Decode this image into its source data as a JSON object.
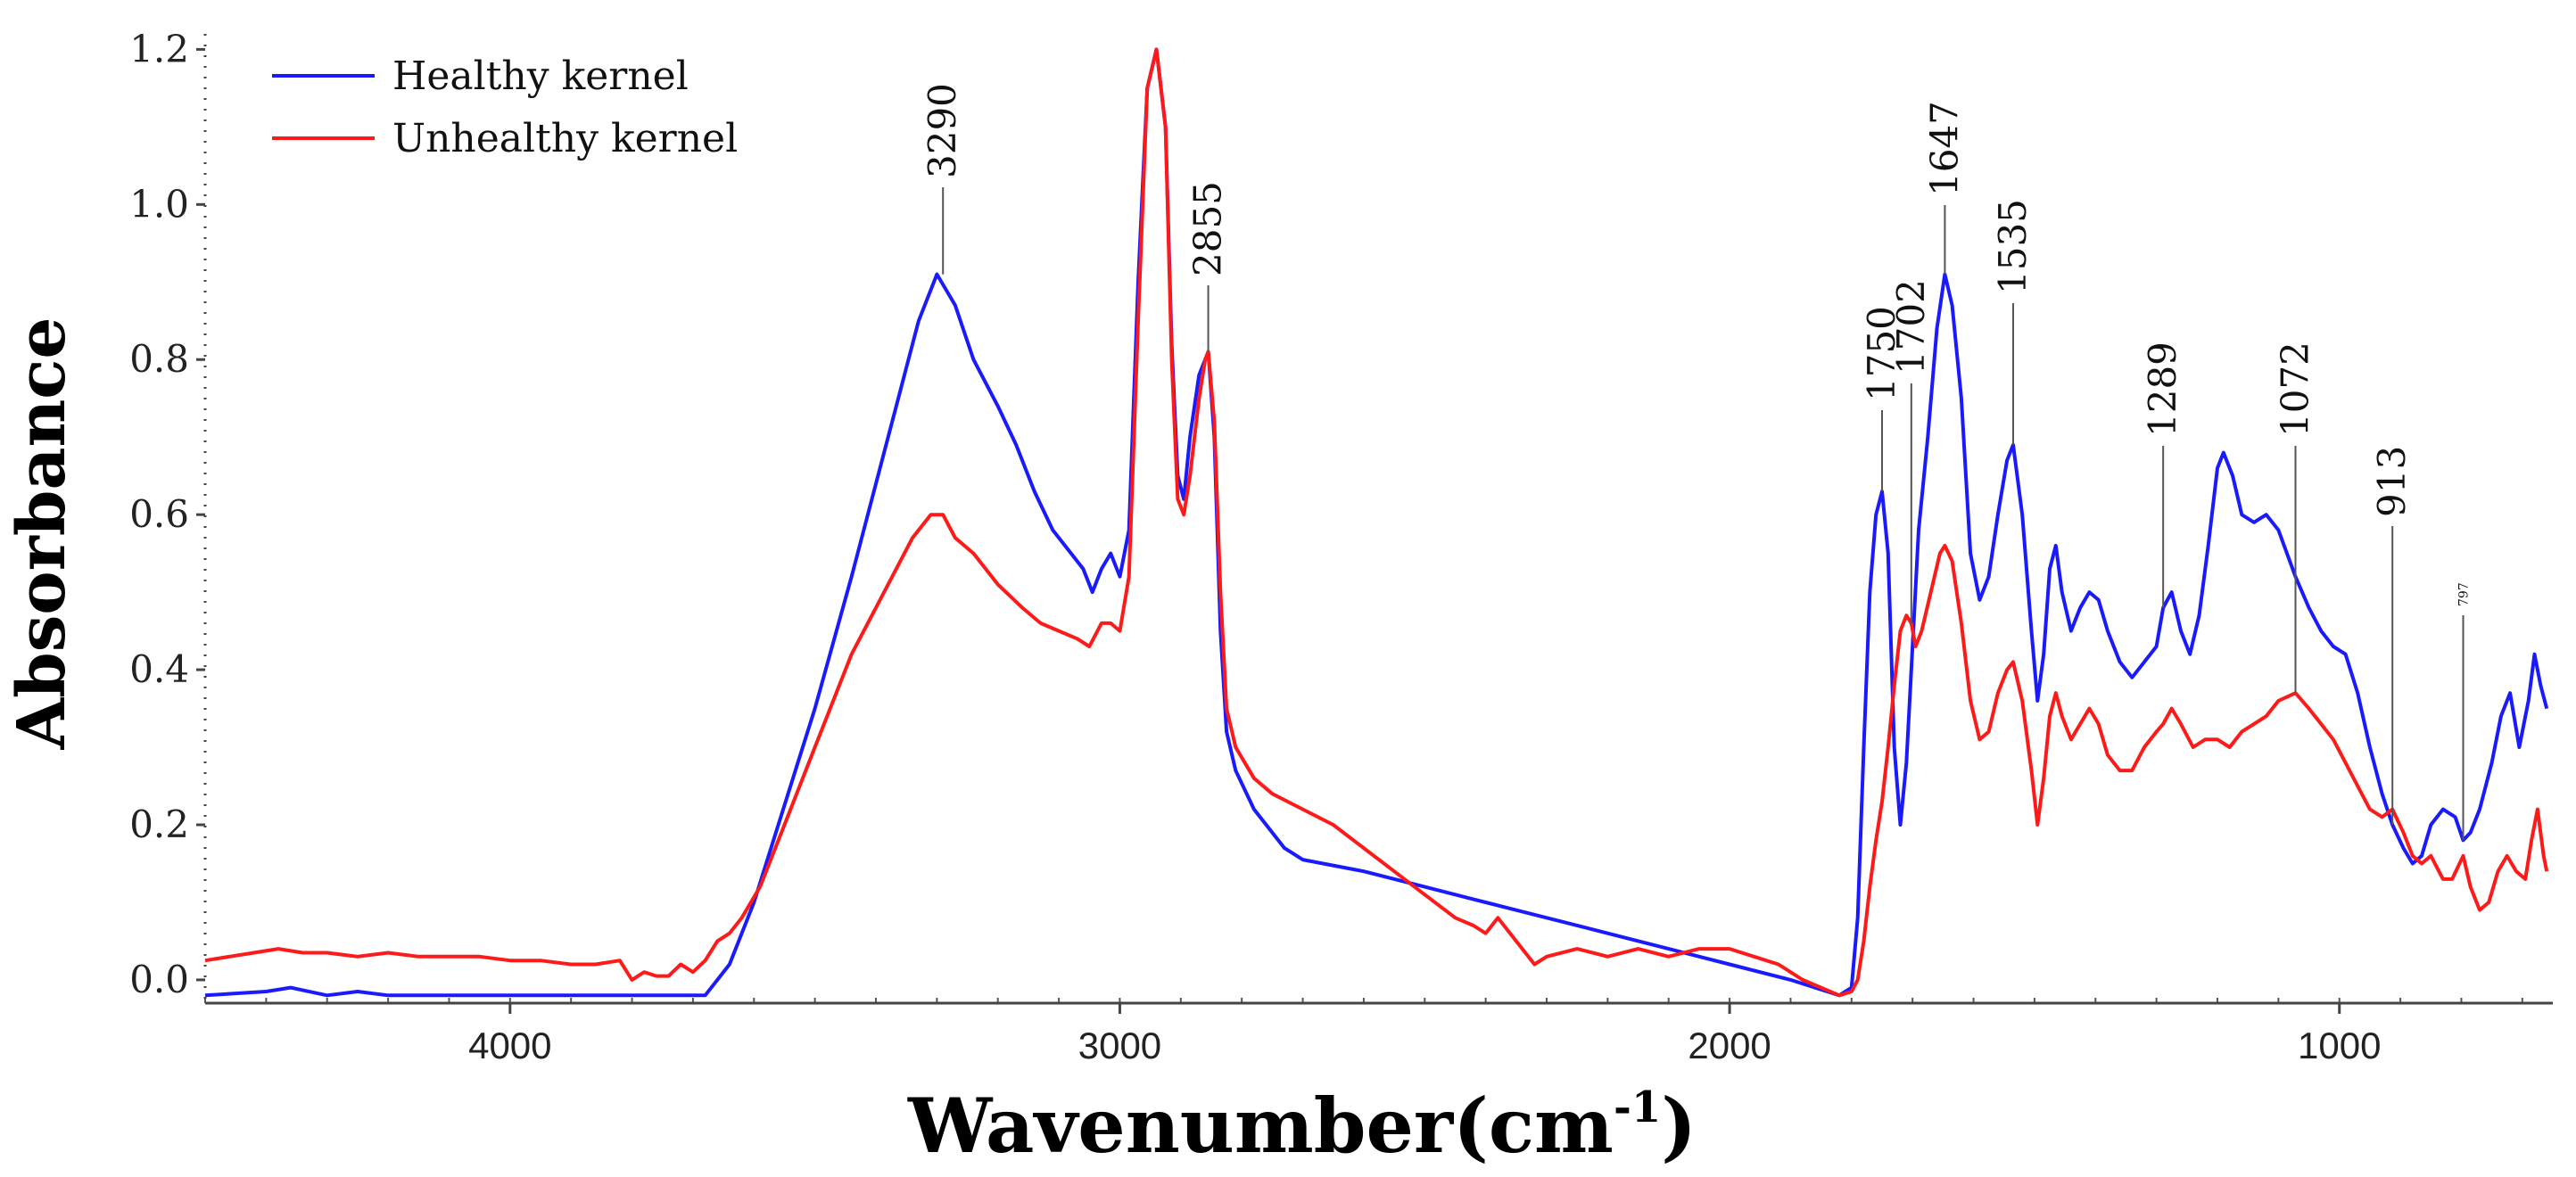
{
  "chart_data": {
    "type": "line",
    "title": "",
    "xlabel": "Wavenumber(cm",
    "xlabel_sup": "-1",
    "xlabel_close": ")",
    "ylabel": "Absorbance",
    "xlim": [
      4500,
      650
    ],
    "ylim": [
      -0.03,
      1.22
    ],
    "x_ticks": [
      4000,
      3000,
      2000,
      1000
    ],
    "x_tick_labels": [
      "4000",
      "3000",
      "2000",
      "1000"
    ],
    "y_ticks": [
      0.0,
      0.2,
      0.4,
      0.6,
      0.8,
      1.0,
      1.2
    ],
    "y_tick_labels": [
      "0.0",
      "0.2",
      "0.4",
      "0.6",
      "0.8",
      "1.0",
      "1.2"
    ],
    "legend_position": "top-left",
    "series": [
      {
        "name": "Healthy kernel",
        "color": "#1a1aff",
        "points": [
          [
            4500,
            -0.02
          ],
          [
            4400,
            -0.015
          ],
          [
            4360,
            -0.01
          ],
          [
            4300,
            -0.02
          ],
          [
            4250,
            -0.015
          ],
          [
            4200,
            -0.02
          ],
          [
            4100,
            -0.02
          ],
          [
            4000,
            -0.02
          ],
          [
            3900,
            -0.02
          ],
          [
            3800,
            -0.02
          ],
          [
            3720,
            -0.02
          ],
          [
            3680,
            -0.02
          ],
          [
            3640,
            0.02
          ],
          [
            3600,
            0.1
          ],
          [
            3560,
            0.2
          ],
          [
            3500,
            0.35
          ],
          [
            3440,
            0.52
          ],
          [
            3380,
            0.7
          ],
          [
            3330,
            0.85
          ],
          [
            3300,
            0.91
          ],
          [
            3270,
            0.87
          ],
          [
            3240,
            0.8
          ],
          [
            3200,
            0.74
          ],
          [
            3170,
            0.69
          ],
          [
            3140,
            0.63
          ],
          [
            3110,
            0.58
          ],
          [
            3080,
            0.55
          ],
          [
            3060,
            0.53
          ],
          [
            3045,
            0.5
          ],
          [
            3030,
            0.53
          ],
          [
            3015,
            0.55
          ],
          [
            3000,
            0.52
          ],
          [
            2985,
            0.58
          ],
          [
            2970,
            0.9
          ],
          [
            2955,
            1.15
          ],
          [
            2940,
            1.2
          ],
          [
            2925,
            1.1
          ],
          [
            2915,
            0.82
          ],
          [
            2905,
            0.65
          ],
          [
            2895,
            0.62
          ],
          [
            2885,
            0.7
          ],
          [
            2870,
            0.78
          ],
          [
            2855,
            0.81
          ],
          [
            2845,
            0.7
          ],
          [
            2835,
            0.45
          ],
          [
            2825,
            0.32
          ],
          [
            2810,
            0.27
          ],
          [
            2780,
            0.22
          ],
          [
            2730,
            0.17
          ],
          [
            2700,
            0.155
          ],
          [
            2600,
            0.14
          ],
          [
            2500,
            0.12
          ],
          [
            2400,
            0.1
          ],
          [
            2300,
            0.08
          ],
          [
            2200,
            0.06
          ],
          [
            2100,
            0.04
          ],
          [
            2000,
            0.02
          ],
          [
            1900,
            0.0
          ],
          [
            1840,
            -0.015
          ],
          [
            1820,
            -0.02
          ],
          [
            1800,
            -0.01
          ],
          [
            1790,
            0.08
          ],
          [
            1780,
            0.3
          ],
          [
            1770,
            0.5
          ],
          [
            1760,
            0.6
          ],
          [
            1750,
            0.63
          ],
          [
            1740,
            0.55
          ],
          [
            1730,
            0.3
          ],
          [
            1720,
            0.2
          ],
          [
            1710,
            0.28
          ],
          [
            1702,
            0.4
          ],
          [
            1690,
            0.58
          ],
          [
            1675,
            0.7
          ],
          [
            1660,
            0.84
          ],
          [
            1647,
            0.91
          ],
          [
            1635,
            0.87
          ],
          [
            1620,
            0.75
          ],
          [
            1605,
            0.55
          ],
          [
            1590,
            0.49
          ],
          [
            1575,
            0.52
          ],
          [
            1560,
            0.6
          ],
          [
            1545,
            0.67
          ],
          [
            1535,
            0.69
          ],
          [
            1520,
            0.6
          ],
          [
            1505,
            0.45
          ],
          [
            1495,
            0.36
          ],
          [
            1485,
            0.42
          ],
          [
            1475,
            0.53
          ],
          [
            1465,
            0.56
          ],
          [
            1455,
            0.5
          ],
          [
            1440,
            0.45
          ],
          [
            1425,
            0.48
          ],
          [
            1410,
            0.5
          ],
          [
            1395,
            0.49
          ],
          [
            1380,
            0.45
          ],
          [
            1360,
            0.41
          ],
          [
            1340,
            0.39
          ],
          [
            1320,
            0.41
          ],
          [
            1300,
            0.43
          ],
          [
            1289,
            0.48
          ],
          [
            1275,
            0.5
          ],
          [
            1260,
            0.45
          ],
          [
            1245,
            0.42
          ],
          [
            1230,
            0.47
          ],
          [
            1215,
            0.56
          ],
          [
            1200,
            0.66
          ],
          [
            1190,
            0.68
          ],
          [
            1175,
            0.65
          ],
          [
            1160,
            0.6
          ],
          [
            1140,
            0.59
          ],
          [
            1120,
            0.6
          ],
          [
            1100,
            0.58
          ],
          [
            1072,
            0.52
          ],
          [
            1050,
            0.48
          ],
          [
            1030,
            0.45
          ],
          [
            1010,
            0.43
          ],
          [
            990,
            0.42
          ],
          [
            970,
            0.37
          ],
          [
            950,
            0.3
          ],
          [
            930,
            0.24
          ],
          [
            913,
            0.2
          ],
          [
            895,
            0.17
          ],
          [
            880,
            0.15
          ],
          [
            865,
            0.16
          ],
          [
            850,
            0.2
          ],
          [
            830,
            0.22
          ],
          [
            810,
            0.21
          ],
          [
            797,
            0.18
          ],
          [
            785,
            0.19
          ],
          [
            770,
            0.22
          ],
          [
            750,
            0.28
          ],
          [
            735,
            0.34
          ],
          [
            720,
            0.37
          ],
          [
            705,
            0.3
          ],
          [
            690,
            0.36
          ],
          [
            680,
            0.42
          ],
          [
            670,
            0.38
          ],
          [
            660,
            0.35
          ]
        ]
      },
      {
        "name": "Unhealthy kernel",
        "color": "#ff1a1a",
        "points": [
          [
            4500,
            0.025
          ],
          [
            4460,
            0.03
          ],
          [
            4420,
            0.035
          ],
          [
            4380,
            0.04
          ],
          [
            4340,
            0.035
          ],
          [
            4300,
            0.035
          ],
          [
            4250,
            0.03
          ],
          [
            4200,
            0.035
          ],
          [
            4150,
            0.03
          ],
          [
            4100,
            0.03
          ],
          [
            4050,
            0.03
          ],
          [
            4000,
            0.025
          ],
          [
            3950,
            0.025
          ],
          [
            3900,
            0.02
          ],
          [
            3860,
            0.02
          ],
          [
            3820,
            0.025
          ],
          [
            3800,
            0.0
          ],
          [
            3780,
            0.01
          ],
          [
            3760,
            0.005
          ],
          [
            3740,
            0.005
          ],
          [
            3720,
            0.02
          ],
          [
            3700,
            0.01
          ],
          [
            3680,
            0.025
          ],
          [
            3660,
            0.05
          ],
          [
            3640,
            0.06
          ],
          [
            3620,
            0.08
          ],
          [
            3590,
            0.12
          ],
          [
            3550,
            0.2
          ],
          [
            3500,
            0.3
          ],
          [
            3440,
            0.42
          ],
          [
            3380,
            0.51
          ],
          [
            3340,
            0.57
          ],
          [
            3310,
            0.6
          ],
          [
            3290,
            0.6
          ],
          [
            3270,
            0.57
          ],
          [
            3240,
            0.55
          ],
          [
            3200,
            0.51
          ],
          [
            3160,
            0.48
          ],
          [
            3130,
            0.46
          ],
          [
            3100,
            0.45
          ],
          [
            3070,
            0.44
          ],
          [
            3050,
            0.43
          ],
          [
            3030,
            0.46
          ],
          [
            3015,
            0.46
          ],
          [
            3000,
            0.45
          ],
          [
            2985,
            0.52
          ],
          [
            2970,
            0.85
          ],
          [
            2955,
            1.15
          ],
          [
            2940,
            1.2
          ],
          [
            2925,
            1.1
          ],
          [
            2915,
            0.8
          ],
          [
            2905,
            0.62
          ],
          [
            2895,
            0.6
          ],
          [
            2885,
            0.65
          ],
          [
            2870,
            0.75
          ],
          [
            2860,
            0.8
          ],
          [
            2855,
            0.81
          ],
          [
            2845,
            0.72
          ],
          [
            2835,
            0.5
          ],
          [
            2825,
            0.35
          ],
          [
            2810,
            0.3
          ],
          [
            2780,
            0.26
          ],
          [
            2750,
            0.24
          ],
          [
            2700,
            0.22
          ],
          [
            2650,
            0.2
          ],
          [
            2600,
            0.17
          ],
          [
            2550,
            0.14
          ],
          [
            2500,
            0.11
          ],
          [
            2450,
            0.08
          ],
          [
            2420,
            0.07
          ],
          [
            2400,
            0.06
          ],
          [
            2380,
            0.08
          ],
          [
            2350,
            0.05
          ],
          [
            2320,
            0.02
          ],
          [
            2300,
            0.03
          ],
          [
            2250,
            0.04
          ],
          [
            2200,
            0.03
          ],
          [
            2150,
            0.04
          ],
          [
            2100,
            0.03
          ],
          [
            2050,
            0.04
          ],
          [
            2000,
            0.04
          ],
          [
            1960,
            0.03
          ],
          [
            1920,
            0.02
          ],
          [
            1880,
            0.0
          ],
          [
            1850,
            -0.01
          ],
          [
            1820,
            -0.02
          ],
          [
            1800,
            -0.015
          ],
          [
            1790,
            0.0
          ],
          [
            1780,
            0.05
          ],
          [
            1770,
            0.12
          ],
          [
            1760,
            0.18
          ],
          [
            1750,
            0.23
          ],
          [
            1740,
            0.3
          ],
          [
            1730,
            0.38
          ],
          [
            1720,
            0.45
          ],
          [
            1710,
            0.47
          ],
          [
            1702,
            0.46
          ],
          [
            1695,
            0.43
          ],
          [
            1685,
            0.45
          ],
          [
            1670,
            0.5
          ],
          [
            1655,
            0.55
          ],
          [
            1647,
            0.56
          ],
          [
            1635,
            0.54
          ],
          [
            1620,
            0.46
          ],
          [
            1605,
            0.36
          ],
          [
            1590,
            0.31
          ],
          [
            1575,
            0.32
          ],
          [
            1560,
            0.37
          ],
          [
            1545,
            0.4
          ],
          [
            1535,
            0.41
          ],
          [
            1520,
            0.36
          ],
          [
            1505,
            0.27
          ],
          [
            1495,
            0.2
          ],
          [
            1485,
            0.26
          ],
          [
            1475,
            0.34
          ],
          [
            1465,
            0.37
          ],
          [
            1455,
            0.34
          ],
          [
            1440,
            0.31
          ],
          [
            1425,
            0.33
          ],
          [
            1410,
            0.35
          ],
          [
            1395,
            0.33
          ],
          [
            1380,
            0.29
          ],
          [
            1360,
            0.27
          ],
          [
            1340,
            0.27
          ],
          [
            1320,
            0.3
          ],
          [
            1300,
            0.32
          ],
          [
            1289,
            0.33
          ],
          [
            1275,
            0.35
          ],
          [
            1260,
            0.33
          ],
          [
            1240,
            0.3
          ],
          [
            1220,
            0.31
          ],
          [
            1200,
            0.31
          ],
          [
            1180,
            0.3
          ],
          [
            1160,
            0.32
          ],
          [
            1140,
            0.33
          ],
          [
            1120,
            0.34
          ],
          [
            1100,
            0.36
          ],
          [
            1072,
            0.37
          ],
          [
            1050,
            0.35
          ],
          [
            1030,
            0.33
          ],
          [
            1010,
            0.31
          ],
          [
            990,
            0.28
          ],
          [
            970,
            0.25
          ],
          [
            950,
            0.22
          ],
          [
            930,
            0.21
          ],
          [
            913,
            0.22
          ],
          [
            895,
            0.19
          ],
          [
            880,
            0.16
          ],
          [
            865,
            0.15
          ],
          [
            850,
            0.16
          ],
          [
            830,
            0.13
          ],
          [
            815,
            0.13
          ],
          [
            797,
            0.16
          ],
          [
            785,
            0.12
          ],
          [
            770,
            0.09
          ],
          [
            755,
            0.1
          ],
          [
            740,
            0.14
          ],
          [
            725,
            0.16
          ],
          [
            710,
            0.14
          ],
          [
            695,
            0.13
          ],
          [
            685,
            0.18
          ],
          [
            675,
            0.22
          ],
          [
            665,
            0.16
          ],
          [
            660,
            0.14
          ]
        ]
      }
    ],
    "annotations": [
      {
        "label": "3290",
        "x": 3290,
        "series": 0,
        "y": 0.91
      },
      {
        "label": "2855",
        "x": 2855,
        "series": 0,
        "y": 0.81
      },
      {
        "label": "1750",
        "x": 1750,
        "series": 0,
        "y": 0.63
      },
      {
        "label": "1702",
        "x": 1702,
        "series": 1,
        "y": 0.46
      },
      {
        "label": "1647",
        "x": 1647,
        "series": 0,
        "y": 0.91
      },
      {
        "label": "1535",
        "x": 1535,
        "series": 0,
        "y": 0.69
      },
      {
        "label": "1289",
        "x": 1289,
        "series": 0,
        "y": 0.48
      },
      {
        "label": "1072",
        "x": 1072,
        "series": 1,
        "y": 0.37
      },
      {
        "label": "913",
        "x": 913,
        "series": 1,
        "y": 0.2
      },
      {
        "label": "797",
        "x": 797,
        "series": 0,
        "y": 0.18
      }
    ]
  }
}
